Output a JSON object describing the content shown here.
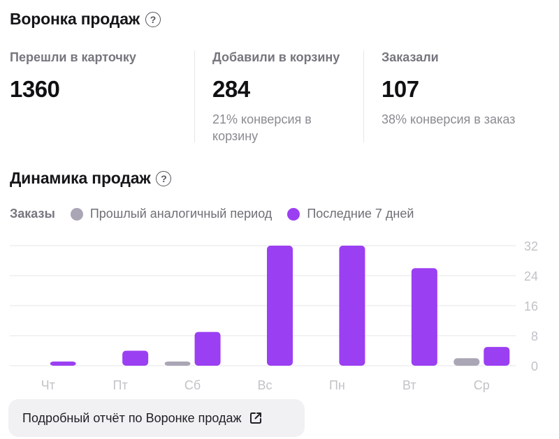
{
  "funnel": {
    "title": "Воронка продаж",
    "help_icon": "question-circle-icon",
    "metrics": [
      {
        "label": "Перешли в карточку",
        "value": "1360",
        "sub": ""
      },
      {
        "label": "Добавили в корзину",
        "value": "284",
        "sub": "21% конверсия в корзину"
      },
      {
        "label": "Заказали",
        "value": "107",
        "sub": "38% конверсия в заказ"
      }
    ]
  },
  "dynamics": {
    "title": "Динамика продаж",
    "help_icon": "question-circle-icon",
    "legend": {
      "title": "Заказы",
      "items": [
        {
          "label": "Прошлый аналогичный период",
          "color": "#aaa6b5"
        },
        {
          "label": "Последние 7 дней",
          "color": "#9b3ff2"
        }
      ]
    }
  },
  "chart_data": {
    "type": "bar",
    "categories": [
      "Чт",
      "Пт",
      "Сб",
      "Вс",
      "Пн",
      "Вт",
      "Ср"
    ],
    "series": [
      {
        "name": "Прошлый аналогичный период",
        "color": "#aaa6b5",
        "values": [
          0,
          0,
          1,
          0,
          0,
          0,
          2
        ]
      },
      {
        "name": "Последние 7 дней",
        "color": "#9b3ff2",
        "values": [
          1,
          4,
          9,
          32,
          32,
          26,
          5
        ]
      }
    ],
    "y_ticks": [
      0,
      8,
      16,
      24,
      32
    ],
    "ylim": [
      0,
      32
    ],
    "grid": true,
    "legend_position": "top-left"
  },
  "report_button": {
    "label": "Подробный отчёт по Воронке продаж",
    "icon": "external-link-icon"
  }
}
